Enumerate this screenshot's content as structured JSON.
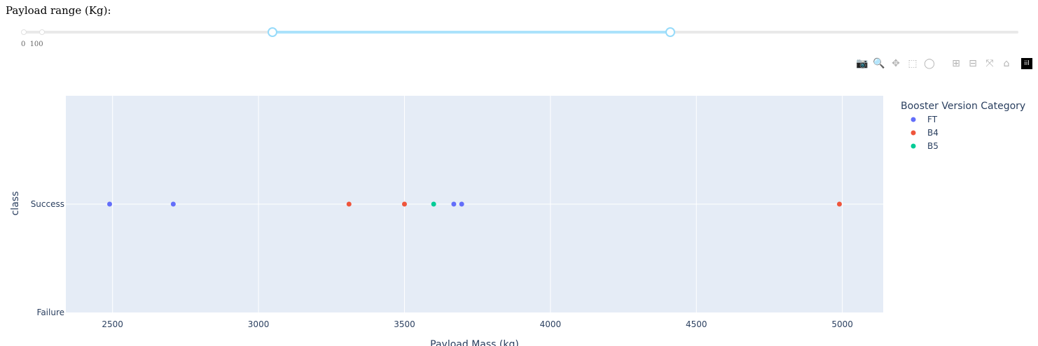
{
  "slider": {
    "title": "Payload range (Kg):",
    "marks": [
      {
        "value": 0,
        "label": "0"
      },
      {
        "value": 100,
        "label": "100"
      }
    ],
    "min": 0,
    "max": 10000,
    "selected_range": [
      2500,
      6500
    ]
  },
  "modebar": {
    "buttons": [
      {
        "name": "camera-icon",
        "glyph": "📷"
      },
      {
        "name": "zoom-icon",
        "glyph": "🔍"
      },
      {
        "name": "pan-icon",
        "glyph": "✥"
      },
      {
        "name": "box-select-icon",
        "glyph": "⬚"
      },
      {
        "name": "lasso-select-icon",
        "glyph": "◯"
      },
      {
        "name": "zoom-in-icon",
        "glyph": "⊞"
      },
      {
        "name": "zoom-out-icon",
        "glyph": "⊟"
      },
      {
        "name": "autoscale-icon",
        "glyph": "⤧"
      },
      {
        "name": "reset-axes-icon",
        "glyph": "⌂"
      }
    ],
    "logo": "iil"
  },
  "chart_data": {
    "type": "scatter",
    "title": "",
    "xlabel": "Payload Mass (kg)",
    "ylabel": "class",
    "xlim": [
      2340,
      5140
    ],
    "x_ticks": [
      2500,
      3000,
      3500,
      4000,
      4500,
      5000
    ],
    "y_categories": [
      "Failure",
      "Success"
    ],
    "grid": true,
    "legend": {
      "title": "Booster Version Category",
      "placement": "right"
    },
    "colors": {
      "FT": "#636efa",
      "B4": "#ef553b",
      "B5": "#00cc96",
      "plot_bg": "#e5ecf6"
    },
    "series": [
      {
        "name": "FT",
        "points": [
          {
            "x": 2490,
            "y": "Success"
          },
          {
            "x": 2708,
            "y": "Success"
          },
          {
            "x": 3669,
            "y": "Success"
          },
          {
            "x": 3696,
            "y": "Success"
          }
        ]
      },
      {
        "name": "B4",
        "points": [
          {
            "x": 3310,
            "y": "Success"
          },
          {
            "x": 3500,
            "y": "Success"
          },
          {
            "x": 4990,
            "y": "Success"
          }
        ]
      },
      {
        "name": "B5",
        "points": [
          {
            "x": 3600,
            "y": "Success"
          }
        ]
      }
    ]
  }
}
